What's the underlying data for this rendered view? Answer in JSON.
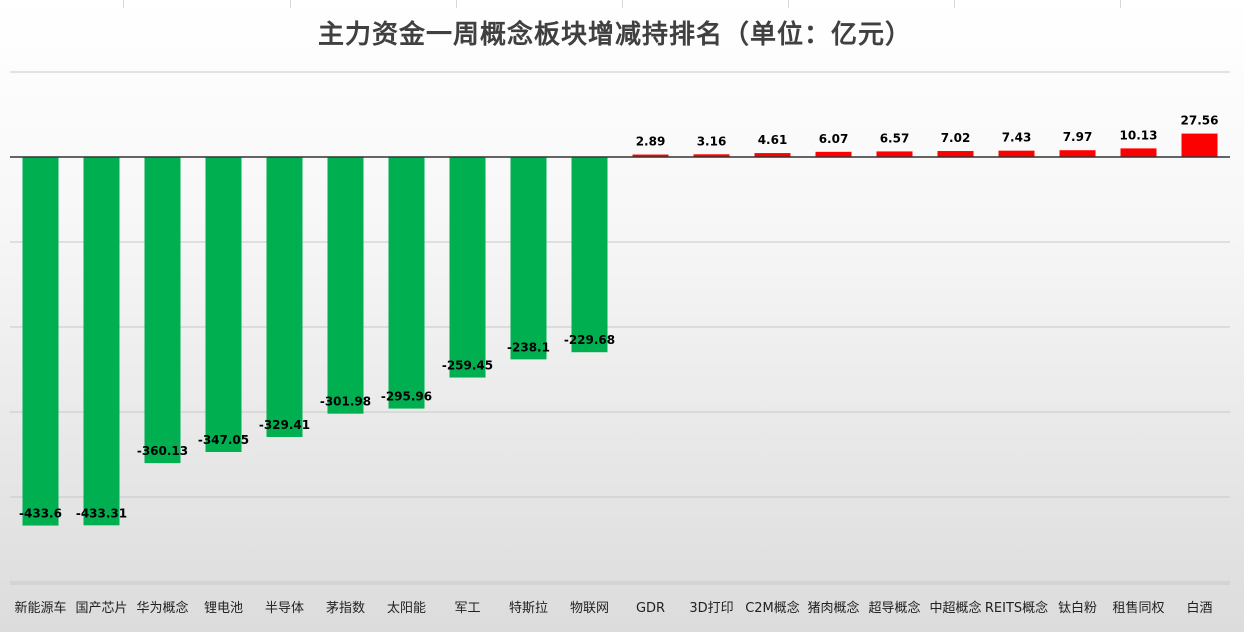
{
  "chart_data": {
    "type": "bar",
    "title": "主力资金一周概念板块增减持排名（单位：亿元）",
    "xlabel": "",
    "ylabel": "",
    "categories": [
      "新能源车",
      "国产芯片",
      "华为概念",
      "锂电池",
      "半导体",
      "茅指数",
      "太阳能",
      "军工",
      "特斯拉",
      "物联网",
      "GDR",
      "3D打印",
      "C2M概念",
      "猪肉概念",
      "超导概念",
      "中超概念",
      "REITS概念",
      "钛白粉",
      "租售同权",
      "白酒"
    ],
    "values": [
      -433.6,
      -433.31,
      -360.13,
      -347.05,
      -329.41,
      -301.98,
      -295.96,
      -259.45,
      -238.1,
      -229.68,
      2.89,
      3.16,
      4.61,
      6.07,
      6.57,
      7.02,
      7.43,
      7.97,
      10.13,
      27.56
    ],
    "data_labels": [
      "-433.6",
      "-433.31",
      "-360.13",
      "-347.05",
      "-329.41",
      "-301.98",
      "-295.96",
      "-259.45",
      "-238.1",
      "-229.68",
      "2.89",
      "3.16",
      "4.61",
      "6.07",
      "6.57",
      "7.02",
      "7.43",
      "7.97",
      "10.13",
      "27.56"
    ],
    "ylim": [
      -500,
      100
    ],
    "grid": true,
    "legend": "none",
    "colors": {
      "negative": "#00b050",
      "positive": "#ff0000",
      "gridline": "#c8c8c8",
      "zero_line": "#333333"
    }
  }
}
